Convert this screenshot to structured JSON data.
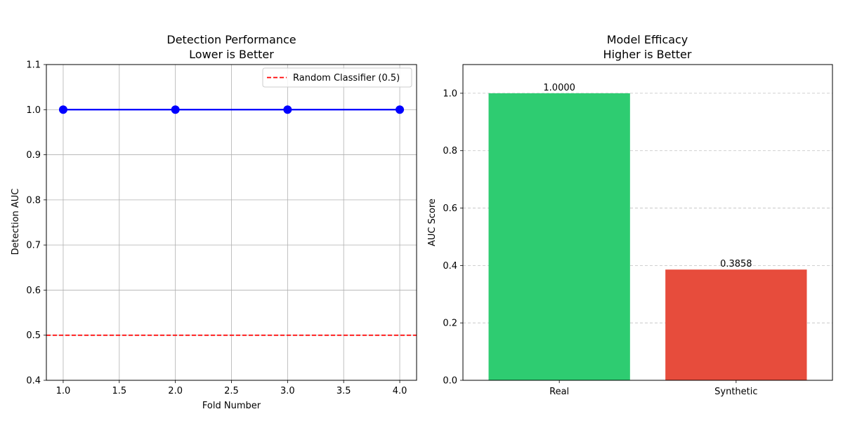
{
  "chart_data": [
    {
      "type": "line",
      "title_line1": "Detection Performance",
      "title_line2": "Lower is Better",
      "xlabel": "Fold Number",
      "ylabel": "Detection AUC",
      "xlim": [
        0.85,
        4.15
      ],
      "ylim": [
        0.4,
        1.1
      ],
      "x_ticks": [
        1.0,
        1.5,
        2.0,
        2.5,
        3.0,
        3.5,
        4.0
      ],
      "x_tick_labels": [
        "1.0",
        "1.5",
        "2.0",
        "2.5",
        "3.0",
        "3.5",
        "4.0"
      ],
      "y_ticks": [
        0.4,
        0.5,
        0.6,
        0.7,
        0.8,
        0.9,
        1.0,
        1.1
      ],
      "y_tick_labels": [
        "0.4",
        "0.5",
        "0.6",
        "0.7",
        "0.8",
        "0.9",
        "1.0",
        "1.1"
      ],
      "grid": true,
      "series": [
        {
          "x": [
            1,
            2,
            3,
            4
          ],
          "y": [
            1.0,
            1.0,
            1.0,
            1.0
          ],
          "color": "#0000ff"
        }
      ],
      "reference_line": {
        "y": 0.5,
        "color": "#ff0000",
        "style": "dashed",
        "label": "Random Classifier (0.5)"
      },
      "legend": {
        "position": "top-right",
        "entries": [
          "Random Classifier (0.5)"
        ]
      }
    },
    {
      "type": "bar",
      "title_line1": "Model Efficacy",
      "title_line2": "Higher is Better",
      "xlabel": "",
      "ylabel": "AUC Score",
      "ylim": [
        0,
        1.1
      ],
      "y_ticks": [
        0.0,
        0.2,
        0.4,
        0.6,
        0.8,
        1.0
      ],
      "y_tick_labels": [
        "0.0",
        "0.2",
        "0.4",
        "0.6",
        "0.8",
        "1.0"
      ],
      "grid": "y-dashed",
      "categories": [
        "Real",
        "Synthetic"
      ],
      "values": [
        1.0,
        0.3858
      ],
      "value_labels": [
        "1.0000",
        "0.3858"
      ],
      "colors": [
        "#2ecc71",
        "#e74c3c"
      ]
    }
  ]
}
